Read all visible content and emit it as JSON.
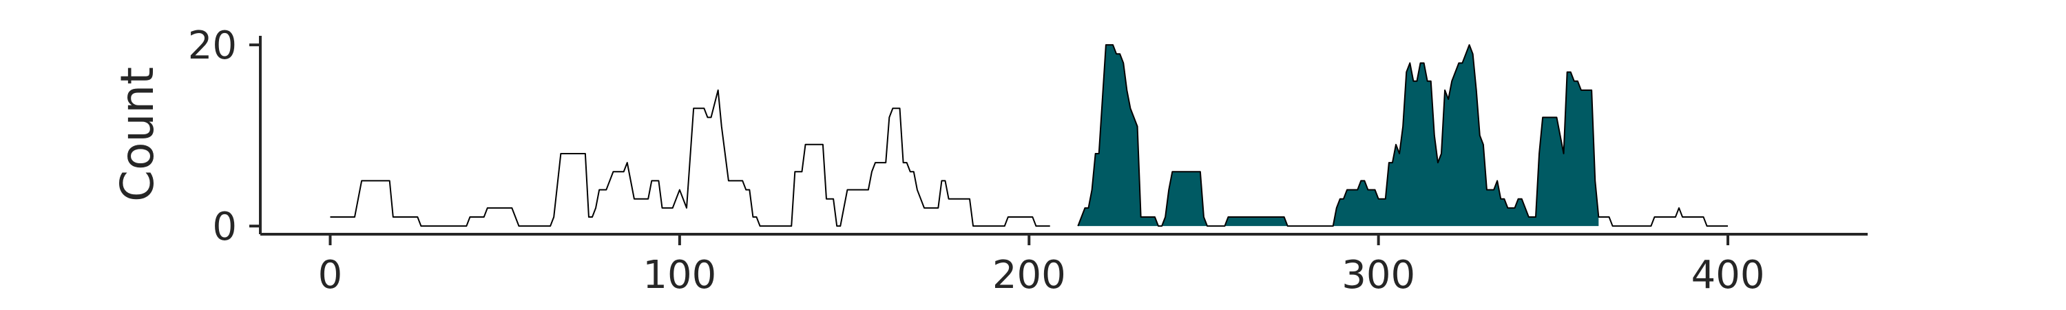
{
  "chart_data": {
    "type": "area",
    "xlabel": "",
    "ylabel": "Count",
    "xlim": [
      -20,
      440
    ],
    "ylim": [
      -0.9,
      21
    ],
    "x_ticks": [
      0,
      100,
      200,
      300,
      400
    ],
    "y_ticks": [
      0,
      20
    ],
    "grid": false,
    "legend": "none",
    "colors": {
      "outline": "#000000",
      "highlight_fill": "#005a63",
      "axis": "#262626"
    },
    "series": [
      {
        "points": [
          [
            0,
            1
          ],
          [
            7,
            1
          ],
          [
            9,
            5
          ],
          [
            17,
            5
          ],
          [
            18,
            1
          ],
          [
            25,
            1
          ],
          [
            26,
            0
          ],
          [
            39,
            0
          ],
          [
            40,
            1
          ],
          [
            44,
            1
          ],
          [
            45,
            2
          ],
          [
            52,
            2
          ],
          [
            54,
            0
          ],
          [
            63,
            0
          ],
          [
            64,
            1
          ],
          [
            66,
            8
          ],
          [
            73,
            8
          ],
          [
            74,
            1
          ],
          [
            75,
            1
          ],
          [
            76,
            2
          ],
          [
            77,
            4
          ],
          [
            79,
            4
          ],
          [
            81,
            6
          ],
          [
            84,
            6
          ],
          [
            85,
            7
          ],
          [
            87,
            3
          ],
          [
            91,
            3
          ],
          [
            92,
            5
          ],
          [
            94,
            5
          ],
          [
            95,
            2
          ],
          [
            98,
            2
          ],
          [
            100,
            4
          ],
          [
            102,
            2
          ],
          [
            104,
            13
          ],
          [
            107,
            13
          ],
          [
            108,
            12
          ],
          [
            109,
            12
          ],
          [
            111,
            15
          ],
          [
            112,
            11
          ],
          [
            114,
            5
          ],
          [
            118,
            5
          ],
          [
            119,
            4
          ],
          [
            120,
            4
          ],
          [
            121,
            1
          ],
          [
            122,
            1
          ],
          [
            123,
            0
          ],
          [
            132,
            0
          ],
          [
            133,
            6
          ],
          [
            135,
            6
          ],
          [
            136,
            9
          ],
          [
            141,
            9
          ],
          [
            142,
            3
          ],
          [
            144,
            3
          ],
          [
            145,
            0
          ],
          [
            146,
            0
          ],
          [
            147,
            2
          ],
          [
            148,
            4
          ],
          [
            154,
            4
          ],
          [
            155,
            6
          ],
          [
            156,
            7
          ],
          [
            159,
            7
          ],
          [
            160,
            12
          ],
          [
            161,
            13
          ],
          [
            163,
            13
          ],
          [
            164,
            7
          ],
          [
            165,
            7
          ],
          [
            166,
            6
          ],
          [
            167,
            6
          ],
          [
            168,
            4
          ],
          [
            170,
            2
          ],
          [
            174,
            2
          ],
          [
            175,
            5
          ],
          [
            176,
            5
          ],
          [
            177,
            3
          ],
          [
            183,
            3
          ],
          [
            184,
            0
          ],
          [
            193,
            0
          ],
          [
            194,
            1
          ],
          [
            201,
            1
          ],
          [
            202,
            0
          ],
          [
            205,
            0
          ],
          [
            206,
            0
          ]
        ]
      },
      {
        "points": [
          [
            214,
            0
          ],
          [
            215,
            1
          ],
          [
            216,
            2
          ],
          [
            217,
            2
          ],
          [
            218,
            4
          ],
          [
            219,
            8
          ],
          [
            220,
            8
          ],
          [
            221,
            14
          ],
          [
            222,
            20
          ],
          [
            224,
            20
          ],
          [
            225,
            19
          ],
          [
            226,
            19
          ],
          [
            227,
            18
          ],
          [
            228,
            15
          ],
          [
            229,
            13
          ],
          [
            230,
            12
          ],
          [
            231,
            11
          ],
          [
            232,
            1
          ],
          [
            236,
            1
          ],
          [
            237,
            0
          ],
          [
            238,
            0
          ],
          [
            239,
            1
          ],
          [
            240,
            4
          ],
          [
            241,
            6
          ],
          [
            249,
            6
          ],
          [
            250,
            1
          ],
          [
            251,
            0
          ],
          [
            256,
            0
          ],
          [
            257,
            1
          ],
          [
            273,
            1
          ],
          [
            274,
            0
          ],
          [
            287,
            0
          ],
          [
            288,
            2
          ],
          [
            289,
            3
          ],
          [
            290,
            3
          ],
          [
            291,
            4
          ],
          [
            294,
            4
          ],
          [
            295,
            5
          ],
          [
            296,
            5
          ],
          [
            297,
            4
          ],
          [
            299,
            4
          ],
          [
            300,
            3
          ],
          [
            301,
            3
          ],
          [
            302,
            3
          ],
          [
            303,
            7
          ],
          [
            304,
            7
          ],
          [
            305,
            9
          ],
          [
            306,
            8
          ],
          [
            307,
            11
          ],
          [
            308,
            17
          ],
          [
            309,
            18
          ],
          [
            310,
            16
          ],
          [
            311,
            16
          ],
          [
            312,
            18
          ],
          [
            313,
            18
          ],
          [
            314,
            16
          ],
          [
            315,
            16
          ],
          [
            316,
            10
          ],
          [
            317,
            7
          ],
          [
            318,
            8
          ],
          [
            319,
            15
          ],
          [
            320,
            14
          ],
          [
            321,
            16
          ],
          [
            322,
            17
          ],
          [
            323,
            18
          ],
          [
            324,
            18
          ],
          [
            325,
            19
          ],
          [
            326,
            20
          ],
          [
            327,
            19
          ],
          [
            328,
            15
          ],
          [
            329,
            10
          ],
          [
            330,
            9
          ],
          [
            331,
            4
          ],
          [
            333,
            4
          ],
          [
            334,
            5
          ],
          [
            335,
            3
          ],
          [
            336,
            3
          ],
          [
            337,
            2
          ],
          [
            339,
            2
          ],
          [
            340,
            3
          ],
          [
            341,
            3
          ],
          [
            342,
            2
          ],
          [
            343,
            1
          ],
          [
            344,
            1
          ],
          [
            345,
            1
          ],
          [
            346,
            8
          ],
          [
            347,
            12
          ],
          [
            351,
            12
          ],
          [
            352,
            10
          ],
          [
            353,
            8
          ],
          [
            354,
            17
          ],
          [
            355,
            17
          ],
          [
            356,
            16
          ],
          [
            357,
            16
          ],
          [
            358,
            15
          ],
          [
            359,
            15
          ],
          [
            360,
            15
          ],
          [
            361,
            15
          ],
          [
            362,
            5
          ],
          [
            363,
            1
          ],
          [
            366,
            1
          ],
          [
            367,
            0
          ],
          [
            378,
            0
          ],
          [
            379,
            1
          ],
          [
            385,
            1
          ],
          [
            386,
            2
          ],
          [
            387,
            1
          ],
          [
            393,
            1
          ],
          [
            394,
            0
          ],
          [
            400,
            0
          ]
        ],
        "highlight_range": [
          214,
          364
        ]
      }
    ]
  }
}
